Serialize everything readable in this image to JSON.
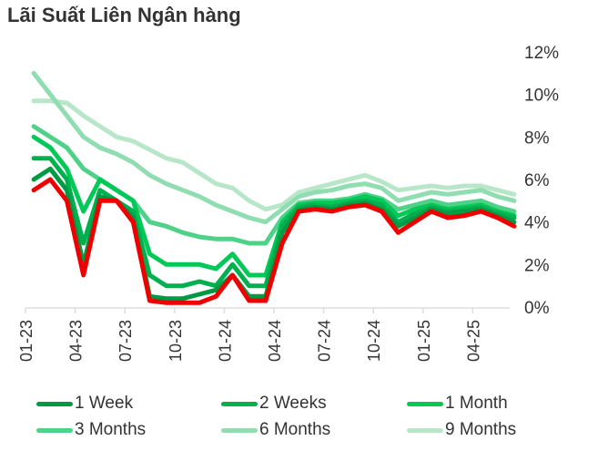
{
  "chart_data": {
    "type": "line",
    "title": "Lãi Suất Liên Ngân hàng",
    "x": [
      "2023-01",
      "2023-02",
      "2023-03",
      "2023-04",
      "2023-05",
      "2023-06",
      "2023-07",
      "2023-08",
      "2023-09",
      "2023-10",
      "2023-11",
      "2023-12",
      "2024-01",
      "2024-02",
      "2024-03",
      "2024-04",
      "2024-05",
      "2024-06",
      "2024-07",
      "2024-08",
      "2024-09",
      "2024-10",
      "2024-11",
      "2024-12",
      "2025-01",
      "2025-02",
      "2025-03",
      "2025-04",
      "2025-05",
      "2025-06"
    ],
    "x_tick_labels": [
      "01-23",
      "04-23",
      "07-23",
      "10-23",
      "01-24",
      "04-24",
      "07-24",
      "10-24",
      "01-25",
      "04-25"
    ],
    "y_tick_labels": [
      "0%",
      "2%",
      "4%",
      "6%",
      "8%",
      "10%",
      "12%"
    ],
    "ylim": [
      0,
      12
    ],
    "y_axis_position": "right",
    "grid": false,
    "legend_placement": "bottom",
    "series": [
      {
        "name": "9 Months",
        "color": "#b8e6c8",
        "values": [
          9.7,
          9.7,
          9.6,
          9.0,
          8.5,
          8.0,
          7.8,
          7.4,
          7.0,
          6.8,
          6.3,
          5.8,
          5.6,
          5.0,
          4.6,
          4.8,
          5.4,
          5.6,
          5.8,
          6.0,
          6.2,
          5.9,
          5.5,
          5.6,
          5.7,
          5.6,
          5.7,
          5.7,
          5.5,
          5.3
        ]
      },
      {
        "name": "6 Months",
        "color": "#8fddb0",
        "values": [
          11.0,
          10.0,
          9.0,
          8.0,
          7.5,
          7.2,
          6.8,
          6.2,
          5.8,
          5.5,
          5.2,
          4.8,
          4.5,
          4.2,
          4.0,
          4.6,
          5.2,
          5.4,
          5.5,
          5.7,
          5.8,
          5.6,
          5.0,
          5.2,
          5.4,
          5.3,
          5.4,
          5.5,
          5.2,
          5.0
        ]
      },
      {
        "name": "3 Months",
        "color": "#4fd188",
        "values": [
          8.5,
          8.0,
          7.5,
          6.5,
          6.0,
          5.5,
          5.0,
          4.0,
          3.8,
          3.5,
          3.3,
          3.2,
          3.2,
          3.0,
          3.0,
          4.2,
          4.9,
          5.0,
          5.0,
          5.1,
          5.3,
          5.1,
          4.6,
          4.8,
          5.0,
          4.8,
          4.9,
          5.0,
          4.7,
          4.5
        ]
      },
      {
        "name": "1 Month",
        "color": "#00c957",
        "values": [
          8.0,
          7.5,
          6.5,
          4.5,
          6.0,
          5.5,
          5.0,
          2.5,
          2.0,
          2.0,
          2.0,
          1.8,
          2.5,
          1.5,
          1.5,
          4.0,
          4.8,
          4.9,
          4.9,
          5.0,
          5.2,
          5.0,
          4.3,
          4.6,
          4.8,
          4.6,
          4.7,
          4.8,
          4.5,
          4.3
        ]
      },
      {
        "name": "2 Weeks",
        "color": "#00b04f",
        "values": [
          7.0,
          7.0,
          6.0,
          3.0,
          5.5,
          5.0,
          4.5,
          1.5,
          1.0,
          1.0,
          1.2,
          1.0,
          2.0,
          1.0,
          1.0,
          3.8,
          4.7,
          4.8,
          4.7,
          4.9,
          5.0,
          4.8,
          4.0,
          4.4,
          4.7,
          4.5,
          4.6,
          4.7,
          4.4,
          4.2
        ]
      },
      {
        "name": "1 Week",
        "color": "#009a44",
        "values": [
          6.0,
          6.5,
          5.5,
          2.0,
          5.2,
          5.0,
          4.2,
          0.5,
          0.4,
          0.4,
          0.6,
          0.8,
          1.5,
          0.5,
          0.5,
          3.5,
          4.6,
          4.7,
          4.6,
          4.8,
          4.9,
          4.6,
          3.8,
          4.2,
          4.6,
          4.4,
          4.5,
          4.6,
          4.3,
          4.0
        ]
      },
      {
        "color": "#ee0000",
        "values": [
          5.5,
          6.0,
          5.0,
          1.5,
          5.0,
          5.0,
          4.0,
          0.3,
          0.2,
          0.2,
          0.2,
          0.5,
          1.5,
          0.3,
          0.3,
          3.0,
          4.5,
          4.6,
          4.5,
          4.7,
          4.8,
          4.5,
          3.5,
          4.0,
          4.5,
          4.2,
          4.3,
          4.5,
          4.2,
          3.8
        ]
      }
    ]
  },
  "legend": [
    {
      "label": "1 Week",
      "color": "#009a44"
    },
    {
      "label": "2 Weeks",
      "color": "#00b04f"
    },
    {
      "label": "1 Month",
      "color": "#00c957"
    },
    {
      "label": "3 Months",
      "color": "#4fd188"
    },
    {
      "label": "6 Months",
      "color": "#8fddb0"
    },
    {
      "label": "9 Months",
      "color": "#b8e6c8"
    }
  ]
}
